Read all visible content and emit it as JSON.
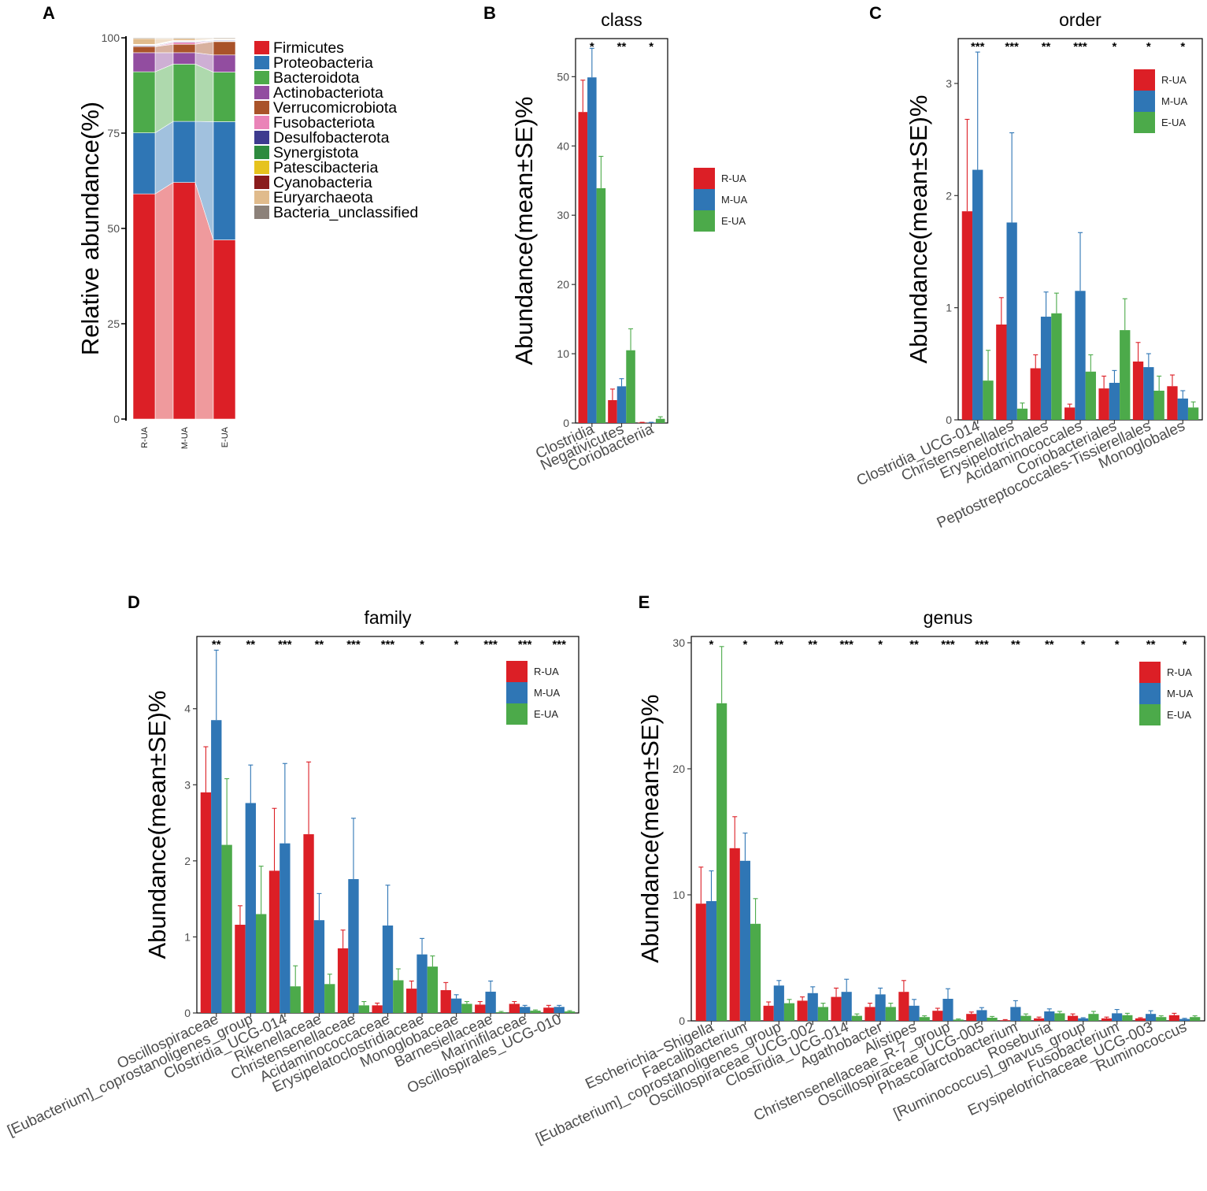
{
  "colors": {
    "phyla": {
      "Firmicutes": "#dc1f26",
      "Proteobacteria": "#2f76b5",
      "Bacteroidota": "#4caa4a",
      "Actinobacteriota": "#924da0",
      "Verrucomicrobiota": "#a9532a",
      "Fusobacteriota": "#ea83b8",
      "Desulfobacterota": "#3e3b8f",
      "Synergistota": "#2e8b3f",
      "Patescibacteria": "#e6c31e",
      "Cyanobacteria": "#8a1c1c",
      "Euryarchaeota": "#e0bb8c",
      "Bacteria_unclassified": "#8c8179"
    },
    "groups": {
      "R-UA": "#dc1f26",
      "M-UA": "#2f76b5",
      "E-UA": "#4caa4a"
    },
    "axis": "#000000",
    "tick_text": "#4d4d4d"
  },
  "chart_data": [
    {
      "panel": "A",
      "type": "stacked-bar",
      "title": "",
      "ylabel": "Relative abundance(%)",
      "ylim": [
        0,
        100
      ],
      "yticks": [
        0,
        25,
        50,
        75,
        100
      ],
      "categories": [
        "R-UA",
        "M-UA",
        "E-UA"
      ],
      "series": [
        {
          "name": "Firmicutes",
          "values": [
            59,
            62,
            47
          ]
        },
        {
          "name": "Proteobacteria",
          "values": [
            16,
            16,
            31
          ]
        },
        {
          "name": "Bacteroidota",
          "values": [
            16,
            15,
            13
          ]
        },
        {
          "name": "Actinobacteriota",
          "values": [
            5,
            3,
            4.5
          ]
        },
        {
          "name": "Verrucomicrobiota",
          "values": [
            1.6,
            2.2,
            3.5
          ]
        },
        {
          "name": "Fusobacteriota",
          "values": [
            0.1,
            0.5,
            0.1
          ]
        },
        {
          "name": "Desulfobacterota",
          "values": [
            0.2,
            0.2,
            0.2
          ]
        },
        {
          "name": "Synergistota",
          "values": [
            0.1,
            0.1,
            0.1
          ]
        },
        {
          "name": "Patescibacteria",
          "values": [
            0.1,
            0.1,
            0.1
          ]
        },
        {
          "name": "Cyanobacteria",
          "values": [
            0.1,
            0.1,
            0.1
          ]
        },
        {
          "name": "Euryarchaeota",
          "values": [
            1.5,
            0.5,
            0.2
          ]
        },
        {
          "name": "Bacteria_unclassified",
          "values": [
            0.2,
            0.2,
            0.2
          ]
        }
      ]
    },
    {
      "panel": "B",
      "type": "bar",
      "title": "class",
      "ylabel": "Abundance(mean±SE)%",
      "ylim": [
        0,
        55.5
      ],
      "yticks": [
        0,
        10,
        20,
        30,
        40,
        50
      ],
      "categories": [
        "Clostridia",
        "Negativicutes",
        "Coriobacteriia"
      ],
      "significance": [
        "*",
        "**",
        "*"
      ],
      "series": [
        {
          "name": "R-UA",
          "values": [
            44.9,
            3.3,
            0.05
          ],
          "errors": [
            4.6,
            1.6,
            0.05
          ]
        },
        {
          "name": "M-UA",
          "values": [
            49.9,
            5.3,
            0.05
          ],
          "errors": [
            4.2,
            1.1,
            0.05
          ]
        },
        {
          "name": "E-UA",
          "values": [
            33.9,
            10.5,
            0.6
          ],
          "errors": [
            4.6,
            3.1,
            0.3
          ]
        }
      ]
    },
    {
      "panel": "C",
      "type": "bar",
      "title": "order",
      "ylabel": "Abundance(mean±SE)%",
      "ylim": [
        0,
        3.4
      ],
      "yticks": [
        0,
        1,
        2,
        3
      ],
      "categories": [
        "Clostridia_UCG-014",
        "Christensenellales",
        "Erysipelotrichales",
        "Acidaminococcales",
        "Coriobacteriales",
        "Peptostreptococcales-Tissierellales",
        "Monoglobales"
      ],
      "significance": [
        "***",
        "***",
        "**",
        "***",
        "*",
        "*",
        "*"
      ],
      "series": [
        {
          "name": "R-UA",
          "values": [
            1.86,
            0.85,
            0.46,
            0.11,
            0.28,
            0.52,
            0.3
          ],
          "errors": [
            0.82,
            0.24,
            0.12,
            0.03,
            0.11,
            0.17,
            0.1
          ]
        },
        {
          "name": "M-UA",
          "values": [
            2.23,
            1.76,
            0.92,
            1.15,
            0.33,
            0.47,
            0.19
          ],
          "errors": [
            1.05,
            0.8,
            0.22,
            0.52,
            0.11,
            0.12,
            0.07
          ]
        },
        {
          "name": "E-UA",
          "values": [
            0.35,
            0.1,
            0.95,
            0.43,
            0.8,
            0.26,
            0.11
          ],
          "errors": [
            0.27,
            0.05,
            0.18,
            0.15,
            0.28,
            0.13,
            0.05
          ]
        }
      ]
    },
    {
      "panel": "D",
      "type": "bar",
      "title": "family",
      "ylabel": "Abundance(mean±SE)%",
      "ylim": [
        0,
        4.95
      ],
      "yticks": [
        0,
        1,
        2,
        3,
        4
      ],
      "categories": [
        "Oscillospiraceae",
        "[Eubacterium]_coprostanoligenes_group",
        "Clostridia_UCG-014",
        "Rikenellaceae",
        "Christensenellaceae",
        "Acidaminococcaceae",
        "Erysipelatoclostridiaceae",
        "Monoglobaceae",
        "Barnesiellaceae",
        "Marinifilaceae",
        "Oscillospirales_UCG-010"
      ],
      "significance": [
        "**",
        "**",
        "***",
        "**",
        "***",
        "***",
        "*",
        "*",
        "***",
        "***",
        "***"
      ],
      "series": [
        {
          "name": "R-UA",
          "values": [
            2.9,
            1.16,
            1.87,
            2.35,
            0.85,
            0.1,
            0.32,
            0.3,
            0.11,
            0.12,
            0.07
          ],
          "errors": [
            0.6,
            0.25,
            0.82,
            0.95,
            0.24,
            0.03,
            0.1,
            0.1,
            0.04,
            0.03,
            0.03
          ]
        },
        {
          "name": "M-UA",
          "values": [
            3.85,
            2.76,
            2.23,
            1.22,
            1.76,
            1.15,
            0.77,
            0.19,
            0.28,
            0.08,
            0.08
          ],
          "errors": [
            0.92,
            0.5,
            1.05,
            0.35,
            0.8,
            0.53,
            0.21,
            0.05,
            0.14,
            0.02,
            0.02
          ]
        },
        {
          "name": "E-UA",
          "values": [
            2.21,
            1.3,
            0.35,
            0.38,
            0.1,
            0.43,
            0.61,
            0.12,
            0.01,
            0.03,
            0.02
          ],
          "errors": [
            0.87,
            0.63,
            0.27,
            0.13,
            0.05,
            0.15,
            0.14,
            0.03,
            0.01,
            0.01,
            0.01
          ]
        }
      ]
    },
    {
      "panel": "E",
      "type": "bar",
      "title": "genus",
      "ylabel": "Abundance(mean±SE)%",
      "ylim": [
        0,
        30.5
      ],
      "yticks": [
        0,
        10,
        20,
        30
      ],
      "categories": [
        "Escherichia−Shigella",
        "Faecalibacterium",
        "[Eubacterium]_coprostanoligenes_group",
        "Oscillospiraceae_UCG-002",
        "Clostridia_UCG-014",
        "Agathobacter",
        "Alistipes",
        "Christensenellaceae_R-7_group",
        "Oscillospiraceae_UCG-005",
        "Phascolarctobacterium",
        "Roseburia",
        "[Ruminococcus]_gnavus_group",
        "Fusobacterium",
        "Erysipelotrichaceae_UCG-003",
        "Ruminococcus"
      ],
      "significance": [
        "*",
        "*",
        "**",
        "**",
        "***",
        "*",
        "**",
        "***",
        "***",
        "**",
        "**",
        "*",
        "*",
        "**",
        "*"
      ],
      "series": [
        {
          "name": "R-UA",
          "values": [
            9.3,
            13.7,
            1.2,
            1.6,
            1.9,
            1.1,
            2.3,
            0.8,
            0.55,
            0.05,
            0.2,
            0.4,
            0.2,
            0.2,
            0.45
          ],
          "errors": [
            2.9,
            2.5,
            0.3,
            0.3,
            0.7,
            0.3,
            0.9,
            0.2,
            0.15,
            0.05,
            0.1,
            0.15,
            0.1,
            0.05,
            0.15
          ]
        },
        {
          "name": "M-UA",
          "values": [
            9.5,
            12.7,
            2.8,
            2.2,
            2.3,
            2.1,
            1.2,
            1.75,
            0.85,
            1.1,
            0.75,
            0.2,
            0.6,
            0.55,
            0.15
          ],
          "errors": [
            2.4,
            2.2,
            0.4,
            0.5,
            1.0,
            0.5,
            0.5,
            0.8,
            0.2,
            0.5,
            0.2,
            0.05,
            0.3,
            0.25,
            0.05
          ]
        },
        {
          "name": "E-UA",
          "values": [
            25.2,
            7.7,
            1.4,
            1.1,
            0.4,
            1.1,
            0.3,
            0.1,
            0.25,
            0.4,
            0.6,
            0.55,
            0.45,
            0.3,
            0.3
          ],
          "errors": [
            4.5,
            2.0,
            0.3,
            0.3,
            0.15,
            0.3,
            0.1,
            0.05,
            0.1,
            0.15,
            0.15,
            0.2,
            0.15,
            0.1,
            0.1
          ]
        }
      ]
    }
  ],
  "panel_labels": [
    "A",
    "B",
    "C",
    "D",
    "E"
  ],
  "legend_groups": [
    "R-UA",
    "M-UA",
    "E-UA"
  ]
}
